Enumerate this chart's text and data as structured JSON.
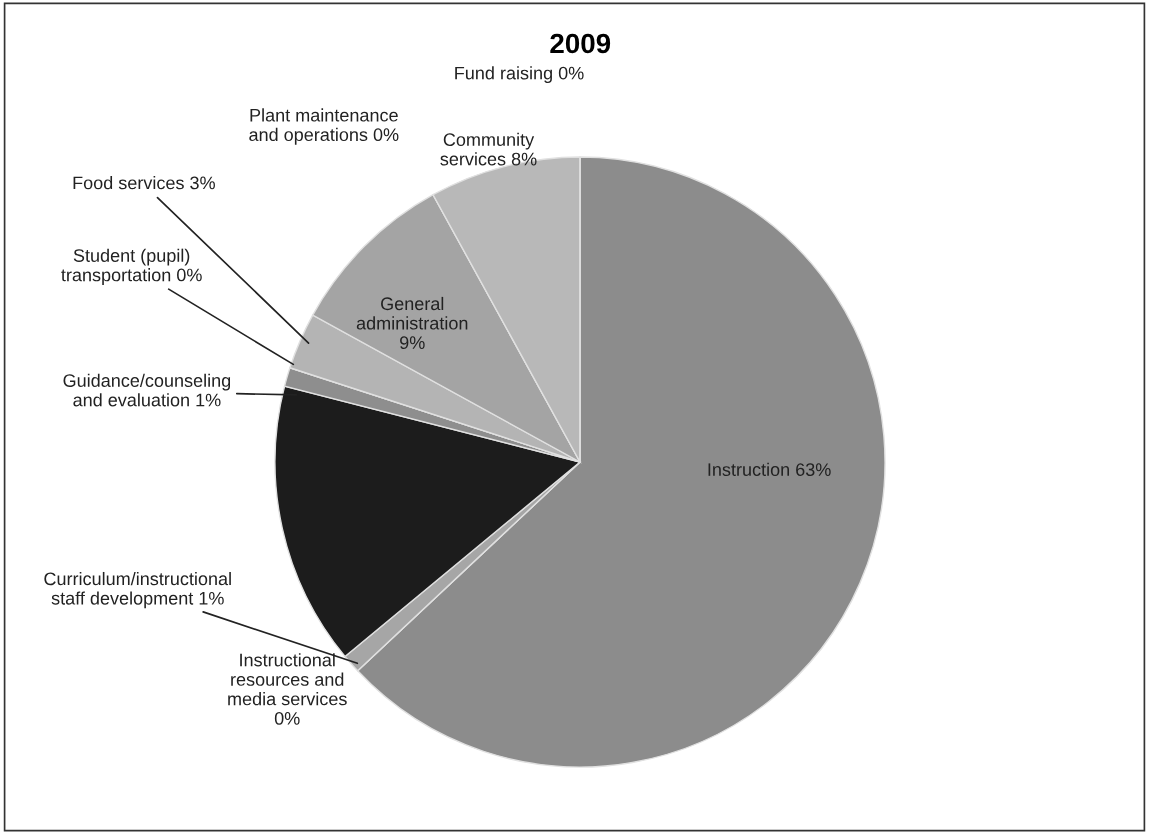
{
  "chart_data": {
    "type": "pie",
    "title": "2009",
    "categories": [
      "Instruction",
      "Instructional resources and media services",
      "Curriculum/instructional staff development",
      null,
      "Guidance/counseling and evaluation",
      "Student (pupil) transportation",
      "Food services",
      "General administration",
      "Plant maintenance and operations",
      "Community services",
      "Fund raising"
    ],
    "values": [
      63,
      0,
      1,
      15,
      1,
      0,
      3,
      9,
      0,
      8,
      0
    ],
    "value_labels": [
      "63%",
      "0%",
      "1%",
      null,
      "1%",
      "0%",
      "3%",
      "9%",
      "0%",
      "8%",
      "0%"
    ],
    "colors": [
      "#8c8c8c",
      "#9a9a9a",
      "#a6a6a6",
      "#1c1c1c",
      "#8e8e8e",
      "#9c9c9c",
      "#b4b4b4",
      "#a4a4a4",
      "#b0b0b0",
      "#b8b8b8",
      "#a0a0a0"
    ]
  }
}
